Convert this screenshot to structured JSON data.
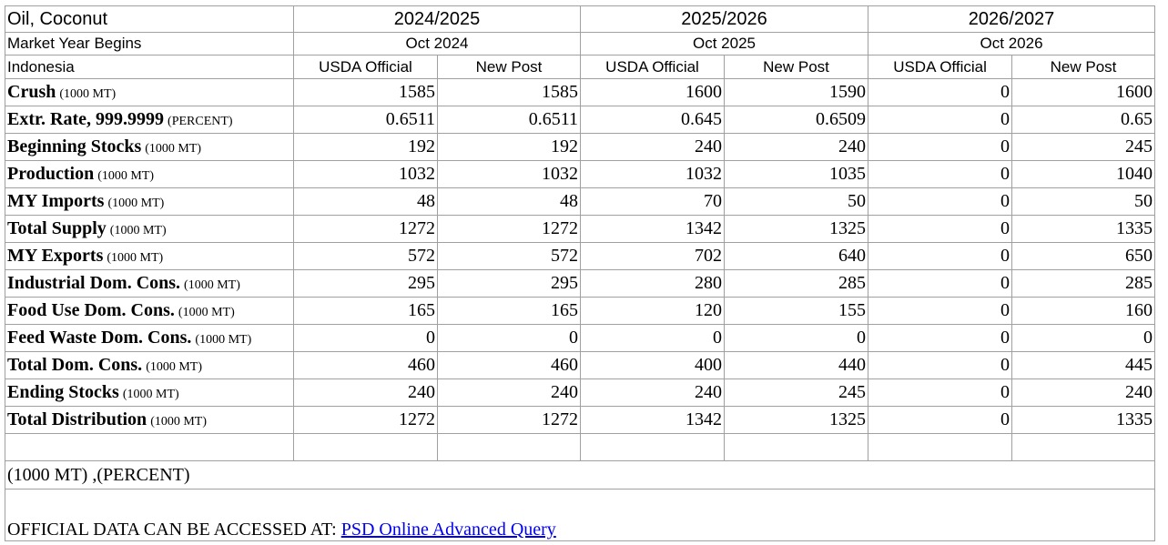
{
  "header": {
    "commodity": "Oil, Coconut",
    "market_year_label": "Market Year Begins",
    "country": "Indonesia",
    "years": [
      {
        "year": "2024/2025",
        "begins": "Oct 2024"
      },
      {
        "year": "2025/2026",
        "begins": "Oct 2025"
      },
      {
        "year": "2026/2027",
        "begins": "Oct 2026"
      }
    ],
    "columns": [
      "USDA Official",
      "New Post",
      "USDA Official",
      "New Post",
      "USDA Official",
      "New Post"
    ]
  },
  "table": {
    "rows": [
      {
        "label": "Crush",
        "unit": "(1000 MT)",
        "values": [
          1585,
          1585,
          1600,
          1590,
          0,
          1600
        ]
      },
      {
        "label": "Extr. Rate, 999.9999",
        "unit": "(PERCENT)",
        "values": [
          0.6511,
          0.6511,
          0.645,
          0.6509,
          0,
          0.65
        ]
      },
      {
        "label": "Beginning Stocks",
        "unit": "(1000 MT)",
        "values": [
          192,
          192,
          240,
          240,
          0,
          245
        ]
      },
      {
        "label": "Production",
        "unit": "(1000 MT)",
        "values": [
          1032,
          1032,
          1032,
          1035,
          0,
          1040
        ]
      },
      {
        "label": "MY Imports",
        "unit": "(1000 MT)",
        "values": [
          48,
          48,
          70,
          50,
          0,
          50
        ]
      },
      {
        "label": "Total Supply",
        "unit": "(1000 MT)",
        "values": [
          1272,
          1272,
          1342,
          1325,
          0,
          1335
        ]
      },
      {
        "label": "MY Exports",
        "unit": "(1000 MT)",
        "values": [
          572,
          572,
          702,
          640,
          0,
          650
        ]
      },
      {
        "label": "Industrial Dom. Cons.",
        "unit": "(1000 MT)",
        "values": [
          295,
          295,
          280,
          285,
          0,
          285
        ]
      },
      {
        "label": "Food Use Dom. Cons.",
        "unit": "(1000 MT)",
        "values": [
          165,
          165,
          120,
          155,
          0,
          160
        ]
      },
      {
        "label": "Feed Waste Dom. Cons.",
        "unit": "(1000 MT)",
        "values": [
          0,
          0,
          0,
          0,
          0,
          0
        ]
      },
      {
        "label": "Total Dom. Cons.",
        "unit": "(1000 MT)",
        "values": [
          460,
          460,
          400,
          440,
          0,
          445
        ]
      },
      {
        "label": "Ending Stocks",
        "unit": "(1000 MT)",
        "values": [
          240,
          240,
          240,
          245,
          0,
          240
        ]
      },
      {
        "label": "Total Distribution",
        "unit": "(1000 MT)",
        "values": [
          1272,
          1272,
          1342,
          1325,
          0,
          1335
        ]
      }
    ]
  },
  "footer": {
    "units_note": "(1000 MT) ,(PERCENT)",
    "access_text": "OFFICIAL DATA CAN BE ACCESSED AT:",
    "link_text": "PSD Online Advanced Query"
  }
}
